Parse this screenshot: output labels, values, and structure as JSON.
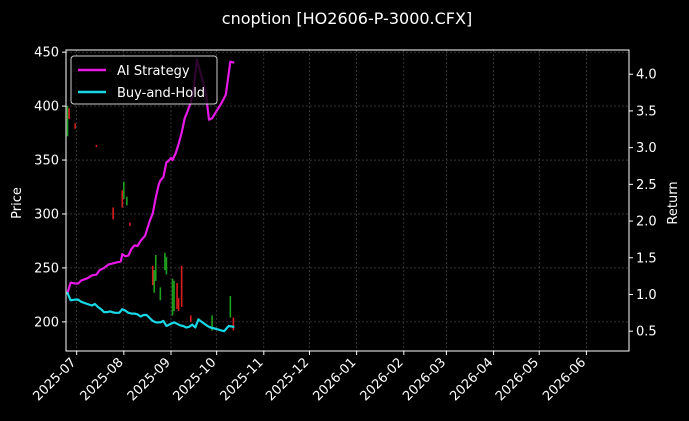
{
  "chart_data": {
    "type": "line",
    "title": "cnoption [HO2606-P-3000.CFX]",
    "ylabel": "Price",
    "y2label": "Return",
    "xlabel": "",
    "xlim": [
      "2025-06-24",
      "2026-06-29"
    ],
    "ylim": [
      173,
      452
    ],
    "y2lim": [
      0.23,
      4.33
    ],
    "grid": true,
    "legend_position": "top-left",
    "background": "#000000",
    "x_ticks": [
      "2025-07",
      "2025-08",
      "2025-09",
      "2025-10",
      "2025-11",
      "2025-12",
      "2026-01",
      "2026-02",
      "2026-03",
      "2026-04",
      "2026-05",
      "2026-06"
    ],
    "y_ticks": [
      200,
      250,
      300,
      350,
      400,
      450
    ],
    "y2_ticks": [
      "0.5",
      "1.0",
      "1.5",
      "2.0",
      "2.5",
      "3.0",
      "3.5",
      "4.0"
    ],
    "series": [
      {
        "name": "AI Strategy",
        "axis": "y2",
        "color": "#e619e6",
        "points": [
          [
            "2025-06-25",
            1.02
          ],
          [
            "2025-06-27",
            1.16
          ],
          [
            "2025-06-30",
            1.15
          ],
          [
            "2025-07-02",
            1.15
          ],
          [
            "2025-07-04",
            1.19
          ],
          [
            "2025-07-08",
            1.22
          ],
          [
            "2025-07-11",
            1.26
          ],
          [
            "2025-07-14",
            1.27
          ],
          [
            "2025-07-16",
            1.33
          ],
          [
            "2025-07-19",
            1.36
          ],
          [
            "2025-07-22",
            1.41
          ],
          [
            "2025-07-26",
            1.43
          ],
          [
            "2025-07-30",
            1.45
          ],
          [
            "2025-07-31",
            1.55
          ],
          [
            "2025-08-02",
            1.52
          ],
          [
            "2025-08-04",
            1.53
          ],
          [
            "2025-08-06",
            1.62
          ],
          [
            "2025-08-08",
            1.67
          ],
          [
            "2025-08-10",
            1.66
          ],
          [
            "2025-08-12",
            1.73
          ],
          [
            "2025-08-15",
            1.8
          ],
          [
            "2025-08-18",
            2.0
          ],
          [
            "2025-08-20",
            2.1
          ],
          [
            "2025-08-22",
            2.32
          ],
          [
            "2025-08-24",
            2.5
          ],
          [
            "2025-08-25",
            2.55
          ],
          [
            "2025-08-27",
            2.6
          ],
          [
            "2025-08-29",
            2.8
          ],
          [
            "2025-08-30",
            2.81
          ],
          [
            "2025-09-01",
            2.86
          ],
          [
            "2025-09-02",
            2.83
          ],
          [
            "2025-09-04",
            2.92
          ],
          [
            "2025-09-06",
            3.05
          ],
          [
            "2025-09-08",
            3.2
          ],
          [
            "2025-09-10",
            3.4
          ],
          [
            "2025-09-12",
            3.5
          ],
          [
            "2025-09-14",
            3.62
          ],
          [
            "2025-09-16",
            3.8
          ],
          [
            "2025-09-18",
            4.2
          ],
          [
            "2025-09-20",
            4.05
          ],
          [
            "2025-09-22",
            3.9
          ],
          [
            "2025-09-24",
            3.72
          ],
          [
            "2025-09-26",
            3.38
          ],
          [
            "2025-09-28",
            3.4
          ],
          [
            "2025-10-01",
            3.5
          ],
          [
            "2025-10-04",
            3.6
          ],
          [
            "2025-10-07",
            3.72
          ],
          [
            "2025-10-09",
            4.02
          ],
          [
            "2025-10-10",
            4.17
          ],
          [
            "2025-10-12",
            4.16
          ]
        ]
      },
      {
        "name": "Buy-and-Hold",
        "axis": "y2",
        "color": "#19d8e6",
        "points": [
          [
            "2025-06-25",
            1.02
          ],
          [
            "2025-06-27",
            0.92
          ],
          [
            "2025-06-30",
            0.93
          ],
          [
            "2025-07-02",
            0.93
          ],
          [
            "2025-07-04",
            0.9
          ],
          [
            "2025-07-08",
            0.87
          ],
          [
            "2025-07-11",
            0.85
          ],
          [
            "2025-07-13",
            0.87
          ],
          [
            "2025-07-15",
            0.83
          ],
          [
            "2025-07-17",
            0.8
          ],
          [
            "2025-07-19",
            0.76
          ],
          [
            "2025-07-21",
            0.76
          ],
          [
            "2025-07-23",
            0.77
          ],
          [
            "2025-07-26",
            0.75
          ],
          [
            "2025-07-29",
            0.75
          ],
          [
            "2025-07-31",
            0.8
          ],
          [
            "2025-08-02",
            0.78
          ],
          [
            "2025-08-04",
            0.75
          ],
          [
            "2025-08-06",
            0.74
          ],
          [
            "2025-08-08",
            0.74
          ],
          [
            "2025-08-10",
            0.73
          ],
          [
            "2025-08-12",
            0.7
          ],
          [
            "2025-08-14",
            0.72
          ],
          [
            "2025-08-16",
            0.72
          ],
          [
            "2025-08-18",
            0.68
          ],
          [
            "2025-08-20",
            0.64
          ],
          [
            "2025-08-22",
            0.62
          ],
          [
            "2025-08-25",
            0.62
          ],
          [
            "2025-08-27",
            0.64
          ],
          [
            "2025-08-29",
            0.57
          ],
          [
            "2025-09-01",
            0.6
          ],
          [
            "2025-09-03",
            0.62
          ],
          [
            "2025-09-05",
            0.6
          ],
          [
            "2025-09-07",
            0.58
          ],
          [
            "2025-09-09",
            0.57
          ],
          [
            "2025-09-11",
            0.55
          ],
          [
            "2025-09-13",
            0.56
          ],
          [
            "2025-09-15",
            0.59
          ],
          [
            "2025-09-17",
            0.55
          ],
          [
            "2025-09-19",
            0.66
          ],
          [
            "2025-09-21",
            0.63
          ],
          [
            "2025-09-23",
            0.6
          ],
          [
            "2025-09-25",
            0.57
          ],
          [
            "2025-09-27",
            0.55
          ],
          [
            "2025-10-01",
            0.53
          ],
          [
            "2025-10-04",
            0.51
          ],
          [
            "2025-10-06",
            0.5
          ],
          [
            "2025-10-08",
            0.55
          ],
          [
            "2025-10-09",
            0.57
          ],
          [
            "2025-10-12",
            0.56
          ]
        ]
      }
    ],
    "price_candles": {
      "axis": "y",
      "up_color": "#1fa01f",
      "down_color": "#d81f1f",
      "bars": [
        {
          "date": "2025-06-25",
          "low": 372,
          "high": 400,
          "direction": "up"
        },
        {
          "date": "2025-06-26",
          "low": 388,
          "high": 398,
          "direction": "down"
        },
        {
          "date": "2025-06-30",
          "low": 379,
          "high": 384,
          "direction": "down"
        },
        {
          "date": "2025-07-14",
          "low": 362,
          "high": 364,
          "direction": "down"
        },
        {
          "date": "2025-07-25",
          "low": 295,
          "high": 306,
          "direction": "down"
        },
        {
          "date": "2025-07-31",
          "low": 306,
          "high": 322,
          "direction": "down"
        },
        {
          "date": "2025-08-01",
          "low": 314,
          "high": 330,
          "direction": "up"
        },
        {
          "date": "2025-08-03",
          "low": 308,
          "high": 316,
          "direction": "up"
        },
        {
          "date": "2025-08-05",
          "low": 289,
          "high": 292,
          "direction": "down"
        },
        {
          "date": "2025-08-20",
          "low": 234,
          "high": 252,
          "direction": "down"
        },
        {
          "date": "2025-08-21",
          "low": 227,
          "high": 248,
          "direction": "up"
        },
        {
          "date": "2025-08-22",
          "low": 238,
          "high": 262,
          "direction": "up"
        },
        {
          "date": "2025-08-25",
          "low": 220,
          "high": 232,
          "direction": "up"
        },
        {
          "date": "2025-08-28",
          "low": 248,
          "high": 264,
          "direction": "up"
        },
        {
          "date": "2025-08-29",
          "low": 244,
          "high": 260,
          "direction": "up"
        },
        {
          "date": "2025-09-02",
          "low": 206,
          "high": 240,
          "direction": "up"
        },
        {
          "date": "2025-09-03",
          "low": 210,
          "high": 238,
          "direction": "up"
        },
        {
          "date": "2025-09-05",
          "low": 212,
          "high": 236,
          "direction": "down"
        },
        {
          "date": "2025-09-06",
          "low": 210,
          "high": 222,
          "direction": "down"
        },
        {
          "date": "2025-09-08",
          "low": 214,
          "high": 252,
          "direction": "down"
        },
        {
          "date": "2025-09-14",
          "low": 200,
          "high": 206,
          "direction": "down"
        },
        {
          "date": "2025-09-28",
          "low": 192,
          "high": 206,
          "direction": "up"
        },
        {
          "date": "2025-10-10",
          "low": 204,
          "high": 224,
          "direction": "up"
        },
        {
          "date": "2025-10-12",
          "low": 192,
          "high": 204,
          "direction": "down"
        }
      ]
    }
  }
}
